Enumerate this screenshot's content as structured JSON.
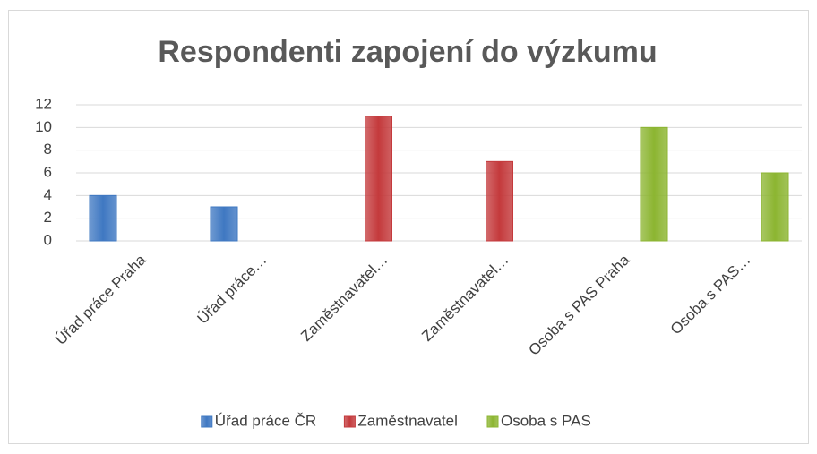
{
  "chart_data": {
    "type": "bar",
    "title": "Respondenti zapojení do výzkumu",
    "categories": [
      "Úřad práce Praha",
      "Úřad práce…",
      "Zaměstnavatel…",
      "Zaměstnavatel…",
      "Osoba s PAS Praha",
      "Osoba s PAS…"
    ],
    "series": [
      {
        "name": "Úřad práce ČR",
        "color": "#3f78c2",
        "values": [
          4,
          3,
          null,
          null,
          null,
          null
        ]
      },
      {
        "name": "Zaměstnavatel",
        "color": "#c43a3c",
        "values": [
          null,
          null,
          11,
          7,
          null,
          null
        ]
      },
      {
        "name": "Osoba s PAS",
        "color": "#8cb531",
        "values": [
          null,
          null,
          null,
          null,
          10,
          6
        ]
      }
    ],
    "ylim": [
      0,
      12
    ],
    "yticks": [
      0,
      2,
      4,
      6,
      8,
      10,
      12
    ],
    "grid": true,
    "legend": "bottom"
  }
}
